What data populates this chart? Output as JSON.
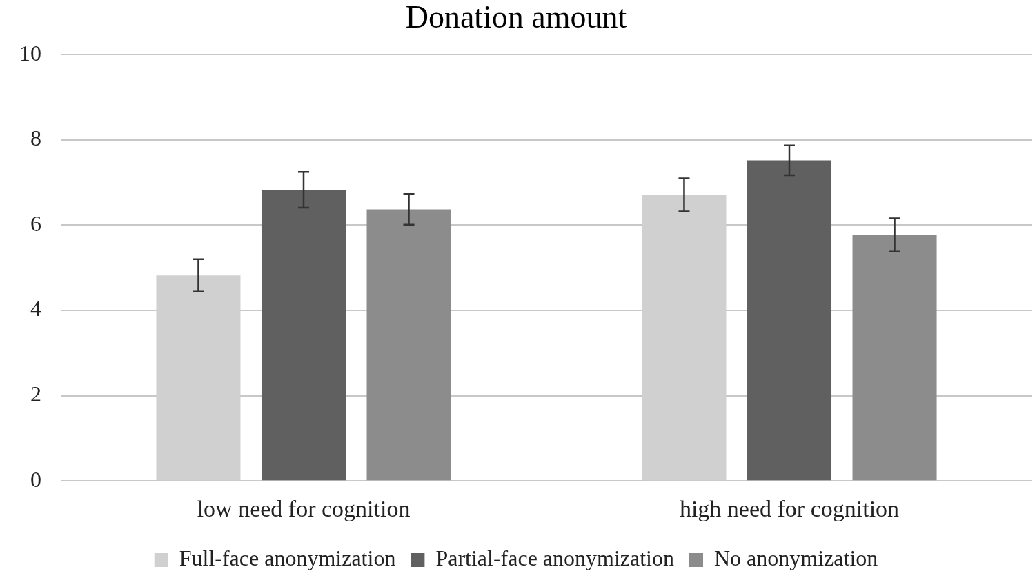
{
  "chart_data": {
    "type": "bar",
    "title": "Donation amount",
    "categories": [
      "low need for cognition",
      "high need for cognition"
    ],
    "series": [
      {
        "name": "Full-face anonymization",
        "color": "#d0d0d0",
        "values": [
          4.82,
          6.71
        ],
        "errors": [
          0.38,
          0.39
        ]
      },
      {
        "name": "Partial-face anonymization",
        "color": "#606060",
        "values": [
          6.83,
          7.52
        ],
        "errors": [
          0.42,
          0.35
        ]
      },
      {
        "name": "No anonymization",
        "color": "#8c8c8c",
        "values": [
          6.37,
          5.77
        ],
        "errors": [
          0.36,
          0.39
        ]
      }
    ],
    "ylim": [
      0,
      10
    ],
    "yticks": [
      0,
      2,
      4,
      6,
      8,
      10
    ],
    "grid": "y",
    "legend": "bottom"
  }
}
